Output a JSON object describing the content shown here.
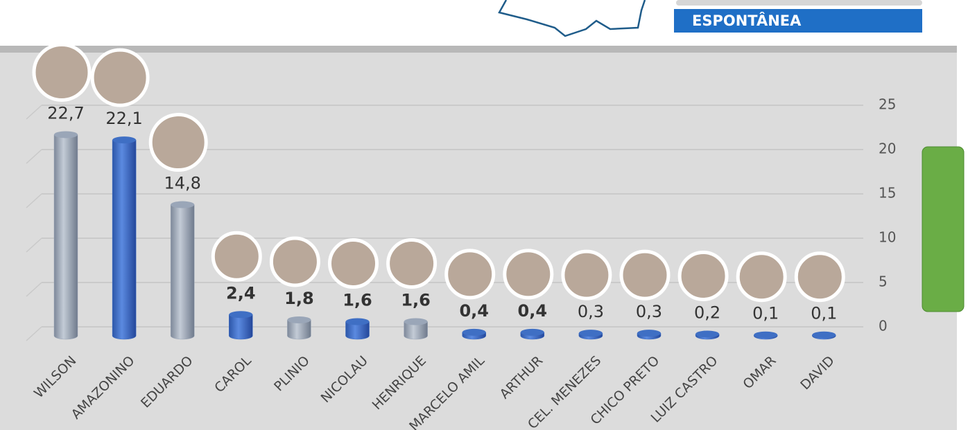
{
  "header": {
    "label": "ESPONTÂNEA"
  },
  "chart_data": {
    "type": "bar",
    "categories": [
      "WILSON",
      "AMAZONINO",
      "EDUARDO",
      "CAROL",
      "PLINIO",
      "NICOLAU",
      "HENRIQUE",
      "MARCELO AMIL",
      "ARTHUR",
      "CEL. MENEZES",
      "CHICO PRETO",
      "LUIZ CASTRO",
      "OMAR",
      "DAVID"
    ],
    "values": [
      22.7,
      22.1,
      14.8,
      2.4,
      1.8,
      1.6,
      1.6,
      0.4,
      0.4,
      0.3,
      0.3,
      0.2,
      0.1,
      0.1
    ],
    "value_labels": [
      "22,7",
      "22,1",
      "14,8",
      "2,4",
      "1,8",
      "1,6",
      "1,6",
      "0,4",
      "0,4",
      "0,3",
      "0,3",
      "0,2",
      "0,1",
      "0,1"
    ],
    "colors": [
      "#9aa6b8",
      "#3f6fc4",
      "#9aa6b8",
      "#3f6fc4",
      "#9aa6b8",
      "#3f6fc4",
      "#9aa6b8",
      "#3f6fc4",
      "#3f6fc4",
      "#3f6fc4",
      "#3f6fc4",
      "#3f6fc4",
      "#3f6fc4",
      "#3f6fc4"
    ],
    "ylim": [
      0,
      25
    ],
    "yticks": [
      0,
      5,
      10,
      15,
      20,
      25
    ],
    "grid": true
  }
}
